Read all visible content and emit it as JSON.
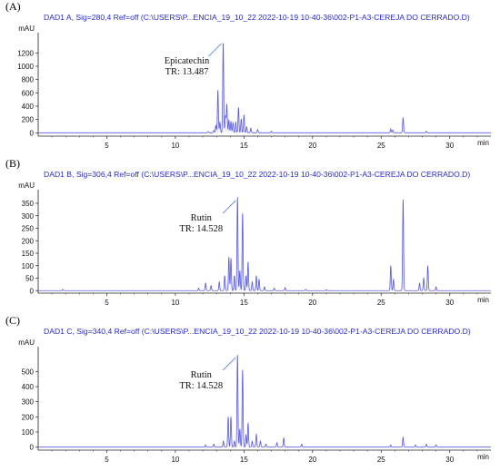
{
  "colors": {
    "trace": "#5a5ae0",
    "axis": "#222222",
    "header": "#2a2ad0"
  },
  "chart_data": [
    {
      "type": "line",
      "panel_label": "(A)",
      "title": "DAD1 A, Sig=280,4 Ref=off (C:\\USERS\\P...ENCIA_19_10_22 2022-10-19 10-40-36\\002-P1-A3-CEREJA DO CERRADO.D)",
      "ylabel": "mAU",
      "xlabel": "min",
      "xlim": [
        0,
        33
      ],
      "ylim": [
        -50,
        1450
      ],
      "x_ticks": [
        5,
        10,
        15,
        20,
        25,
        30
      ],
      "y_ticks": [
        0,
        200,
        400,
        600,
        800,
        1000,
        1200
      ],
      "annotation": {
        "line1": "Epicatechin",
        "line2": "TR: 13.487",
        "target_x": 13.487
      },
      "peaks": [
        {
          "x": 12.4,
          "y": 20
        },
        {
          "x": 12.8,
          "y": 35
        },
        {
          "x": 12.95,
          "y": 110
        },
        {
          "x": 13.1,
          "y": 640
        },
        {
          "x": 13.25,
          "y": 160
        },
        {
          "x": 13.487,
          "y": 1350
        },
        {
          "x": 13.65,
          "y": 250
        },
        {
          "x": 13.75,
          "y": 430
        },
        {
          "x": 13.9,
          "y": 190
        },
        {
          "x": 14.05,
          "y": 170
        },
        {
          "x": 14.2,
          "y": 150
        },
        {
          "x": 14.4,
          "y": 160
        },
        {
          "x": 14.6,
          "y": 380
        },
        {
          "x": 14.8,
          "y": 210
        },
        {
          "x": 15.0,
          "y": 270
        },
        {
          "x": 15.2,
          "y": 90
        },
        {
          "x": 15.5,
          "y": 70
        },
        {
          "x": 16.0,
          "y": 50
        },
        {
          "x": 17.0,
          "y": 25
        },
        {
          "x": 25.7,
          "y": 60
        },
        {
          "x": 25.85,
          "y": 40
        },
        {
          "x": 26.6,
          "y": 230
        },
        {
          "x": 28.3,
          "y": 25
        }
      ]
    },
    {
      "type": "line",
      "panel_label": "(B)",
      "title": "DAD1 B, Sig=306,4 Ref=off (C:\\USERS\\P...ENCIA_19_10_22 2022-10-19 10-40-36\\002-P1-A3-CEREJA DO CERRADO.D)",
      "ylabel": "mAU",
      "xlabel": "min",
      "xlim": [
        0,
        33
      ],
      "ylim": [
        -10,
        390
      ],
      "x_ticks": [
        5,
        10,
        15,
        20,
        25,
        30
      ],
      "y_ticks": [
        0,
        50,
        100,
        150,
        200,
        250,
        300,
        350
      ],
      "annotation": {
        "line1": "Rutin",
        "line2": "TR: 14.528",
        "target_x": 14.528
      },
      "peaks": [
        {
          "x": 1.8,
          "y": 5
        },
        {
          "x": 11.7,
          "y": 10
        },
        {
          "x": 12.2,
          "y": 30
        },
        {
          "x": 12.6,
          "y": 20
        },
        {
          "x": 13.2,
          "y": 35
        },
        {
          "x": 13.6,
          "y": 60
        },
        {
          "x": 13.9,
          "y": 135
        },
        {
          "x": 14.05,
          "y": 130
        },
        {
          "x": 14.3,
          "y": 60
        },
        {
          "x": 14.528,
          "y": 375
        },
        {
          "x": 14.7,
          "y": 80
        },
        {
          "x": 14.9,
          "y": 310
        },
        {
          "x": 15.15,
          "y": 60
        },
        {
          "x": 15.3,
          "y": 115
        },
        {
          "x": 15.6,
          "y": 35
        },
        {
          "x": 15.9,
          "y": 60
        },
        {
          "x": 16.1,
          "y": 45
        },
        {
          "x": 16.5,
          "y": 15
        },
        {
          "x": 17.2,
          "y": 10
        },
        {
          "x": 18.0,
          "y": 12
        },
        {
          "x": 19.5,
          "y": 5
        },
        {
          "x": 21.0,
          "y": 4
        },
        {
          "x": 25.7,
          "y": 100
        },
        {
          "x": 25.9,
          "y": 45
        },
        {
          "x": 26.6,
          "y": 365
        },
        {
          "x": 27.8,
          "y": 30
        },
        {
          "x": 28.1,
          "y": 50
        },
        {
          "x": 28.4,
          "y": 100
        },
        {
          "x": 29.0,
          "y": 15
        }
      ]
    },
    {
      "type": "line",
      "panel_label": "(C)",
      "title": "DAD1 C, Sig=340,4 Ref=off (C:\\USERS\\P...ENCIA_19_10_22 2022-10-19 10-40-36\\002-P1-A3-CEREJA DO CERRADO.D)",
      "ylabel": "mAU",
      "xlabel": "min",
      "xlim": [
        0,
        33
      ],
      "ylim": [
        -20,
        640
      ],
      "x_ticks": [
        5,
        10,
        15,
        20,
        25,
        30
      ],
      "y_ticks": [
        0,
        100,
        200,
        300,
        400,
        500
      ],
      "annotation": {
        "line1": "Rutin",
        "line2": "TR: 14.528",
        "target_x": 14.528
      },
      "peaks": [
        {
          "x": 12.2,
          "y": 15
        },
        {
          "x": 12.8,
          "y": 20
        },
        {
          "x": 13.5,
          "y": 40
        },
        {
          "x": 13.85,
          "y": 200
        },
        {
          "x": 14.05,
          "y": 200
        },
        {
          "x": 14.3,
          "y": 40
        },
        {
          "x": 14.528,
          "y": 610
        },
        {
          "x": 14.7,
          "y": 120
        },
        {
          "x": 14.9,
          "y": 510
        },
        {
          "x": 15.15,
          "y": 80
        },
        {
          "x": 15.3,
          "y": 160
        },
        {
          "x": 15.6,
          "y": 40
        },
        {
          "x": 15.9,
          "y": 85
        },
        {
          "x": 16.2,
          "y": 40
        },
        {
          "x": 16.6,
          "y": 20
        },
        {
          "x": 17.4,
          "y": 30
        },
        {
          "x": 17.9,
          "y": 60
        },
        {
          "x": 19.2,
          "y": 20
        },
        {
          "x": 25.7,
          "y": 15
        },
        {
          "x": 26.6,
          "y": 65
        },
        {
          "x": 27.5,
          "y": 15
        },
        {
          "x": 28.3,
          "y": 20
        },
        {
          "x": 29.0,
          "y": 15
        }
      ]
    }
  ]
}
